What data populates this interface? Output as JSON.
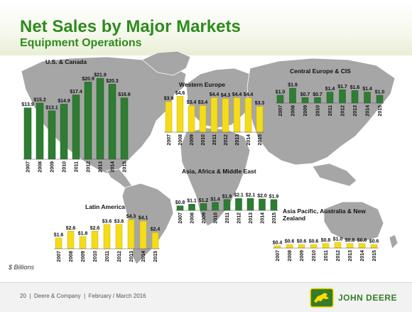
{
  "slide": {
    "title": "Net Sales by Major Markets",
    "subtitle": "Equipment Operations",
    "units_note": "$ Billions",
    "footer_text": "20  |  Deere & Company  |  February / March 2016",
    "logo_text": "JOHN DEERE",
    "colors": {
      "title_green": "#2e8b1e",
      "bar_green": "#2e7d32",
      "bar_yellow": "#f5dc1a",
      "map_gray": "#a6a6a6",
      "logo_green": "#367c2b",
      "logo_yellow": "#fede00"
    }
  },
  "chart_data": [
    {
      "type": "bar",
      "title": "U.S. & Canada",
      "color": "green",
      "categories": [
        "2007",
        "2008",
        "2009",
        "2010",
        "2011",
        "2012",
        "2013",
        "2014",
        "2015"
      ],
      "values": [
        13.9,
        15.2,
        13.1,
        14.9,
        17.4,
        20.9,
        21.9,
        20.3,
        16.6
      ],
      "value_labels": [
        "$13.9",
        "$15.2",
        "$13.1",
        "$14.9",
        "$17.4",
        "$20.9",
        "$21.9",
        "$20.3",
        "$16.6"
      ]
    },
    {
      "type": "bar",
      "title": "Western Europe",
      "color": "yellow",
      "categories": [
        "2007",
        "2008",
        "2009",
        "2010",
        "2011",
        "2012",
        "2013",
        "2014",
        "2015"
      ],
      "values": [
        3.9,
        4.6,
        3.4,
        3.4,
        4.4,
        4.3,
        4.4,
        4.4,
        3.3
      ],
      "value_labels": [
        "$3.9",
        "$4.6",
        "$3.4",
        "$3.4",
        "$4.4",
        "$4.3",
        "$4.4",
        "$4.4",
        "$3.3"
      ]
    },
    {
      "type": "bar",
      "title": "Central Europe & CIS",
      "color": "green",
      "categories": [
        "2007",
        "2008",
        "2009",
        "2010",
        "2011",
        "2012",
        "2013",
        "2014",
        "2015"
      ],
      "values": [
        1.0,
        1.9,
        0.7,
        0.7,
        1.4,
        1.7,
        1.6,
        1.4,
        1.0
      ],
      "value_labels": [
        "$1.0",
        "$1.9",
        "$0.7",
        "$0.7",
        "$1.4",
        "$1.7",
        "$1.6",
        "$1.4",
        "$1.0"
      ]
    },
    {
      "type": "bar",
      "title": "Asia, Africa & Middle East",
      "color": "green",
      "categories": [
        "2007",
        "2008",
        "2009",
        "2010",
        "2011",
        "2012",
        "2013",
        "2014",
        "2015"
      ],
      "values": [
        0.8,
        1.1,
        1.2,
        1.4,
        1.9,
        2.1,
        2.1,
        2.0,
        1.9
      ],
      "value_labels": [
        "$0.8",
        "$1.1",
        "$1.2",
        "$1.4",
        "$1.9",
        "$2.1",
        "$2.1",
        "$2.0",
        "$1.9"
      ]
    },
    {
      "type": "bar",
      "title": "Latin America",
      "color": "yellow",
      "categories": [
        "2007",
        "2008",
        "2009",
        "2010",
        "2011",
        "2012",
        "2013",
        "2014",
        "2015"
      ],
      "values": [
        1.6,
        2.6,
        1.8,
        2.6,
        3.6,
        3.6,
        4.3,
        4.1,
        2.4
      ],
      "value_labels": [
        "$1.6",
        "$2.6",
        "$1.8",
        "$2.6",
        "$3.6",
        "$3.6",
        "$4.3",
        "$4.1",
        "$2.4"
      ]
    },
    {
      "type": "bar",
      "title": "Asia Pacific, Australia & New Zealand",
      "title_lines": [
        "Asia Pacific, Australia & New",
        "Zealand"
      ],
      "color": "yellow",
      "categories": [
        "2007",
        "2008",
        "2009",
        "2010",
        "2011",
        "2012",
        "2013",
        "2014",
        "2015"
      ],
      "values": [
        0.4,
        0.6,
        0.6,
        0.6,
        0.8,
        1.0,
        0.8,
        0.8,
        0.6
      ],
      "value_labels": [
        "$0.4",
        "$0.6",
        "$0.6",
        "$0.6",
        "$0.8",
        "$1.0",
        "$0.8",
        "$0.8",
        "$0.6"
      ]
    }
  ]
}
